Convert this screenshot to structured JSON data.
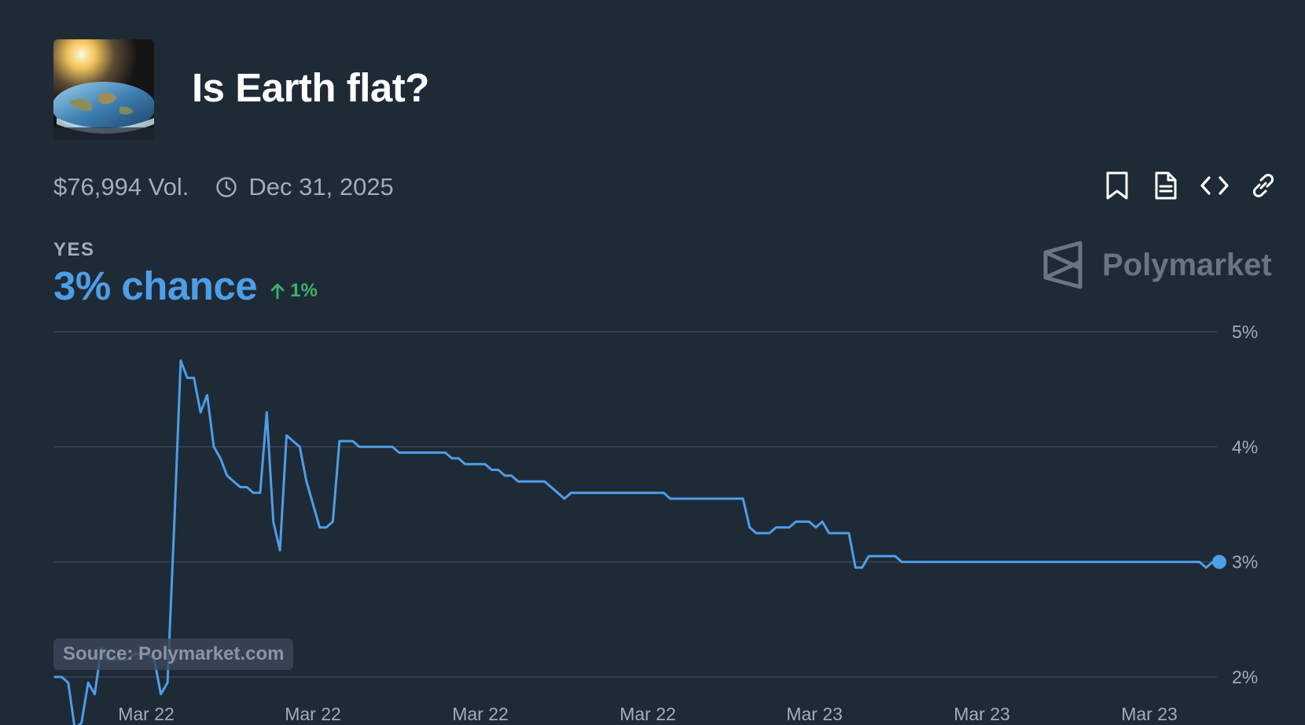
{
  "market": {
    "title": "Is Earth flat?",
    "volume": "$76,994 Vol.",
    "end_date": "Dec 31, 2025",
    "outcome_label": "YES",
    "chance_text": "3% chance",
    "delta_text": "1%",
    "brand": "Polymarket",
    "source": "Source: Polymarket.com"
  },
  "icons": {
    "thumbnail": "flat-earth-image",
    "clock": "clock-icon",
    "bookmark": "bookmark-icon",
    "document": "document-icon",
    "embed": "code-icon",
    "link": "link-icon",
    "delta": "arrow-up-icon",
    "brand": "polymarket-logo"
  },
  "colors": {
    "background": "#1f2a37",
    "line": "#4d9ee6",
    "positive": "#3db468",
    "grid": "#3a4656",
    "muted_text": "#a3acb9"
  },
  "chart_data": {
    "type": "line",
    "title": "",
    "xlabel": "",
    "ylabel": "",
    "ylim": [
      1.5,
      5.0
    ],
    "yticks": [
      2,
      3,
      4,
      5
    ],
    "ytick_labels": [
      "2%",
      "3%",
      "4%",
      "5%"
    ],
    "xtick_labels": [
      "Mar 22",
      "Mar 22",
      "Mar 22",
      "Mar 22",
      "Mar 23",
      "Mar 23",
      "Mar 23"
    ],
    "grid": true,
    "y_axis_side": "right",
    "series": [
      {
        "values": [
          2.0,
          2.0,
          1.95,
          1.55,
          1.6,
          1.95,
          1.85,
          2.25,
          2.15,
          2.15,
          2.15,
          2.15,
          2.2,
          2.2,
          2.2,
          2.15,
          1.85,
          1.95,
          3.3,
          4.75,
          4.6,
          4.6,
          4.3,
          4.45,
          4.0,
          3.9,
          3.75,
          3.7,
          3.65,
          3.65,
          3.6,
          3.6,
          4.3,
          3.35,
          3.1,
          4.1,
          4.05,
          4.0,
          3.7,
          3.5,
          3.3,
          3.3,
          3.35,
          4.05,
          4.05,
          4.05,
          4.0,
          4.0,
          4.0,
          4.0,
          4.0,
          4.0,
          3.95,
          3.95,
          3.95,
          3.95,
          3.95,
          3.95,
          3.95,
          3.95,
          3.9,
          3.9,
          3.85,
          3.85,
          3.85,
          3.85,
          3.8,
          3.8,
          3.75,
          3.75,
          3.7,
          3.7,
          3.7,
          3.7,
          3.7,
          3.65,
          3.6,
          3.55,
          3.6,
          3.6,
          3.6,
          3.6,
          3.6,
          3.6,
          3.6,
          3.6,
          3.6,
          3.6,
          3.6,
          3.6,
          3.6,
          3.6,
          3.6,
          3.55,
          3.55,
          3.55,
          3.55,
          3.55,
          3.55,
          3.55,
          3.55,
          3.55,
          3.55,
          3.55,
          3.55,
          3.3,
          3.25,
          3.25,
          3.25,
          3.3,
          3.3,
          3.3,
          3.35,
          3.35,
          3.35,
          3.3,
          3.35,
          3.25,
          3.25,
          3.25,
          3.25,
          2.95,
          2.95,
          3.05,
          3.05,
          3.05,
          3.05,
          3.05,
          3.0,
          3.0,
          3.0,
          3.0,
          3.0,
          3.0,
          3.0,
          3.0,
          3.0,
          3.0,
          3.0,
          3.0,
          3.0,
          3.0,
          3.0,
          3.0,
          3.0,
          3.0,
          3.0,
          3.0,
          3.0,
          3.0,
          3.0,
          3.0,
          3.0,
          3.0,
          3.0,
          3.0,
          3.0,
          3.0,
          3.0,
          3.0,
          3.0,
          3.0,
          3.0,
          3.0,
          3.0,
          3.0,
          3.0,
          3.0,
          3.0,
          3.0,
          3.0,
          3.0,
          3.0,
          3.0,
          2.95,
          3.0,
          3.0
        ],
        "last_value": 3.0
      }
    ]
  }
}
